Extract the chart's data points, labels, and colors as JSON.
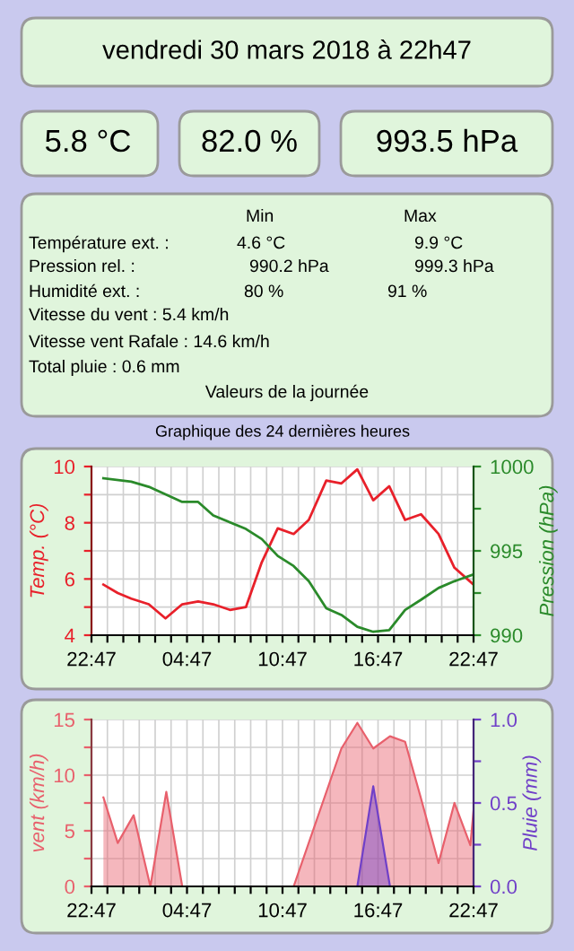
{
  "chart_data": [
    {
      "type": "other",
      "title": "vendredi 30 mars 2018 à 22h47",
      "annotations": [
        "5.8 °C",
        "82.0 %",
        "993.5 hPa",
        "Min",
        "Max",
        "Température ext. :",
        "4.6 °C",
        "9.9 °C",
        "Pression rel. :",
        "990.2 hPa",
        "999.3 hPa",
        "Humidité ext. :",
        "80 %",
        "91 %",
        "Vitesse du vent : 5.4 km/h",
        "Vitesse vent Rafale : 14.6 km/h",
        "Total pluie : 0.6 mm",
        "Valeurs de la journée"
      ]
    },
    {
      "type": "line",
      "title": "Graphique des 24 dernières heures",
      "ylabel": "Temp. (°C)",
      "y2label": "Pression (hPa)",
      "grid": true,
      "xlim": [
        "2018-03-29T22:47",
        "2018-03-30T22:47"
      ],
      "xticks": [
        {
          "value": "2018-03-29T22:47",
          "label": "22:47"
        },
        {
          "value": "2018-03-29T23:47",
          "label": null
        },
        {
          "value": "2018-03-30T00:47",
          "label": null
        },
        {
          "value": "2018-03-30T01:47",
          "label": null
        },
        {
          "value": "2018-03-30T02:47",
          "label": null
        },
        {
          "value": "2018-03-30T03:47",
          "label": null
        },
        {
          "value": "2018-03-30T04:47",
          "label": "04:47"
        },
        {
          "value": "2018-03-30T05:47",
          "label": null
        },
        {
          "value": "2018-03-30T06:47",
          "label": null
        },
        {
          "value": "2018-03-30T07:47",
          "label": null
        },
        {
          "value": "2018-03-30T08:47",
          "label": null
        },
        {
          "value": "2018-03-30T09:47",
          "label": null
        },
        {
          "value": "2018-03-30T10:47",
          "label": "10:47"
        },
        {
          "value": "2018-03-30T11:47",
          "label": null
        },
        {
          "value": "2018-03-30T12:47",
          "label": null
        },
        {
          "value": "2018-03-30T13:47",
          "label": null
        },
        {
          "value": "2018-03-30T14:47",
          "label": null
        },
        {
          "value": "2018-03-30T15:47",
          "label": null
        },
        {
          "value": "2018-03-30T16:47",
          "label": "16:47"
        },
        {
          "value": "2018-03-30T17:47",
          "label": null
        },
        {
          "value": "2018-03-30T18:47",
          "label": null
        },
        {
          "value": "2018-03-30T19:47",
          "label": null
        },
        {
          "value": "2018-03-30T20:47",
          "label": null
        },
        {
          "value": "2018-03-30T21:47",
          "label": null
        },
        {
          "value": "2018-03-30T22:47",
          "label": "22:47"
        }
      ],
      "ylim": [
        4,
        10
      ],
      "yticks": [
        4,
        {
          "value": 5,
          "label": null
        },
        6,
        {
          "value": 7,
          "label": null
        },
        8,
        {
          "value": 9,
          "label": null
        },
        10
      ],
      "y2lim": [
        990,
        1000
      ],
      "y2ticks": [
        990,
        {
          "value": 992.5,
          "label": null
        },
        995,
        {
          "value": 997.5,
          "label": null
        },
        1000
      ],
      "series": [
        {
          "color": "#e8202a",
          "x": [
            "2018-03-29T23:32",
            "2018-03-30T00:26",
            "2018-03-30T01:17",
            "2018-03-30T02:23",
            "2018-03-30T03:26",
            "2018-03-30T04:29",
            "2018-03-30T05:29",
            "2018-03-30T06:26",
            "2018-03-30T07:29",
            "2018-03-30T08:29",
            "2018-03-30T09:29",
            "2018-03-30T10:29",
            "2018-03-30T11:29",
            "2018-03-30T12:26",
            "2018-03-30T13:32",
            "2018-03-30T14:29",
            "2018-03-30T15:29",
            "2018-03-30T16:29",
            "2018-03-30T17:29",
            "2018-03-30T18:29",
            "2018-03-30T19:29",
            "2018-03-30T20:35",
            "2018-03-30T21:35",
            "2018-03-30T22:47"
          ],
          "values": [
            5.8,
            5.5,
            5.3,
            5.1,
            4.6,
            5.1,
            5.2,
            5.1,
            4.9,
            5.0,
            6.6,
            7.8,
            7.6,
            8.1,
            9.5,
            9.4,
            9.9,
            8.8,
            9.3,
            8.1,
            8.3,
            7.6,
            6.4,
            5.8
          ]
        },
        {
          "color": "#2a8a2a",
          "axis": "y2",
          "x": [
            "2018-03-29T23:32",
            "2018-03-30T01:17",
            "2018-03-30T02:23",
            "2018-03-30T04:29",
            "2018-03-30T05:29",
            "2018-03-30T06:26",
            "2018-03-30T08:29",
            "2018-03-30T09:29",
            "2018-03-30T10:29",
            "2018-03-30T11:29",
            "2018-03-30T12:26",
            "2018-03-30T13:32",
            "2018-03-30T14:29",
            "2018-03-30T15:29",
            "2018-03-30T16:29",
            "2018-03-30T17:29",
            "2018-03-30T18:29",
            "2018-03-30T19:29",
            "2018-03-30T20:35",
            "2018-03-30T21:35",
            "2018-03-30T22:47"
          ],
          "values": [
            999.3,
            999.1,
            998.8,
            997.9,
            997.9,
            997.1,
            996.3,
            995.7,
            994.7,
            994.1,
            993.2,
            991.6,
            991.2,
            990.5,
            990.2,
            990.3,
            991.5,
            992.1,
            992.8,
            993.2,
            993.6
          ]
        }
      ]
    },
    {
      "type": "area",
      "ylabel": "vent (km/h)",
      "y2label": "Pluie (mm)",
      "grid": true,
      "xlim": [
        "2018-03-29T22:47",
        "2018-03-30T22:47"
      ],
      "xticks": [
        {
          "value": "2018-03-29T22:47",
          "label": "22:47"
        },
        {
          "value": "2018-03-29T23:47",
          "label": null
        },
        {
          "value": "2018-03-30T00:47",
          "label": null
        },
        {
          "value": "2018-03-30T01:47",
          "label": null
        },
        {
          "value": "2018-03-30T02:47",
          "label": null
        },
        {
          "value": "2018-03-30T03:47",
          "label": null
        },
        {
          "value": "2018-03-30T04:47",
          "label": "04:47"
        },
        {
          "value": "2018-03-30T05:47",
          "label": null
        },
        {
          "value": "2018-03-30T06:47",
          "label": null
        },
        {
          "value": "2018-03-30T07:47",
          "label": null
        },
        {
          "value": "2018-03-30T08:47",
          "label": null
        },
        {
          "value": "2018-03-30T09:47",
          "label": null
        },
        {
          "value": "2018-03-30T10:47",
          "label": "10:47"
        },
        {
          "value": "2018-03-30T11:47",
          "label": null
        },
        {
          "value": "2018-03-30T12:47",
          "label": null
        },
        {
          "value": "2018-03-30T13:47",
          "label": null
        },
        {
          "value": "2018-03-30T14:47",
          "label": null
        },
        {
          "value": "2018-03-30T15:47",
          "label": null
        },
        {
          "value": "2018-03-30T16:47",
          "label": "16:47"
        },
        {
          "value": "2018-03-30T17:47",
          "label": null
        },
        {
          "value": "2018-03-30T18:47",
          "label": null
        },
        {
          "value": "2018-03-30T19:47",
          "label": null
        },
        {
          "value": "2018-03-30T20:47",
          "label": null
        },
        {
          "value": "2018-03-30T21:47",
          "label": null
        },
        {
          "value": "2018-03-30T22:47",
          "label": "22:47"
        }
      ],
      "ylim": [
        0,
        15
      ],
      "yticks": [
        0,
        {
          "value": 2.5,
          "label": null
        },
        5,
        {
          "value": 7.5,
          "label": null
        },
        10,
        {
          "value": 12.5,
          "label": null
        },
        15
      ],
      "y2lim": [
        0,
        1
      ],
      "y2ticks": [
        {
          "value": 0,
          "label": "0.0"
        },
        {
          "value": 0.25,
          "label": null
        },
        {
          "value": 0.5,
          "label": "0.5"
        },
        {
          "value": 0.75,
          "label": null
        },
        {
          "value": 1,
          "label": "1.0"
        }
      ],
      "series": [
        {
          "color": "#e8606c",
          "x": [
            "2018-03-29T23:32",
            "2018-03-30T00:26",
            "2018-03-30T01:26",
            "2018-03-30T02:29",
            "2018-03-30T03:29",
            "2018-03-30T04:29",
            "2018-03-30T05:29",
            "2018-03-30T06:29",
            "2018-03-30T07:29",
            "2018-03-30T08:29",
            "2018-03-30T09:29",
            "2018-03-30T10:29",
            "2018-03-30T11:29",
            "2018-03-30T14:29",
            "2018-03-30T15:29",
            "2018-03-30T16:29",
            "2018-03-30T17:32",
            "2018-03-30T18:29",
            "2018-03-30T19:29",
            "2018-03-30T20:35",
            "2018-03-30T21:35",
            "2018-03-30T22:35",
            "2018-03-30T22:47"
          ],
          "values": [
            8.0,
            3.9,
            6.4,
            0,
            8.5,
            0,
            0,
            0,
            0,
            0,
            0,
            0,
            0,
            12.4,
            14.7,
            12.4,
            13.5,
            13.0,
            7.9,
            2.1,
            7.5,
            3.7,
            6.8
          ]
        },
        {
          "color": "#7040c8",
          "axis": "y2",
          "x": [
            "2018-03-30T15:29",
            "2018-03-30T16:29",
            "2018-03-30T17:32"
          ],
          "values": [
            0,
            0.6,
            0
          ]
        }
      ]
    }
  ]
}
